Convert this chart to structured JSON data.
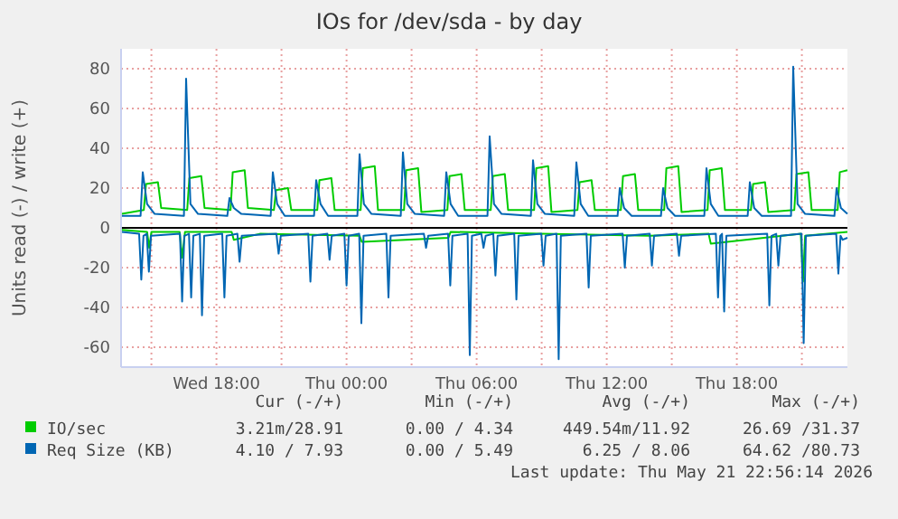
{
  "chart_data": {
    "type": "line",
    "title": "IOs for /dev/sda - by day",
    "ylabel": "Units read (-) / write (+)",
    "xlim": [
      "2026-05-20T13:36",
      "2026-05-21T23:06"
    ],
    "ylim": [
      -70,
      90
    ],
    "xticks": [
      {
        "value": "2026-05-20T15:00",
        "label": null
      },
      {
        "value": "2026-05-20T18:00",
        "label": "Wed 18:00"
      },
      {
        "value": "2026-05-20T21:00",
        "label": null
      },
      {
        "value": "2026-05-21T00:00",
        "label": "Thu 00:00"
      },
      {
        "value": "2026-05-21T03:00",
        "label": null
      },
      {
        "value": "2026-05-21T06:00",
        "label": "Thu 06:00"
      },
      {
        "value": "2026-05-21T09:00",
        "label": null
      },
      {
        "value": "2026-05-21T12:00",
        "label": "Thu 12:00"
      },
      {
        "value": "2026-05-21T15:00",
        "label": null
      },
      {
        "value": "2026-05-21T18:00",
        "label": "Thu 18:00"
      },
      {
        "value": "2026-05-21T21:00",
        "label": null
      }
    ],
    "yticks": [
      -60,
      -40,
      -20,
      0,
      20,
      40,
      60,
      80
    ],
    "grid": true,
    "legend": "bottom",
    "marker": "none",
    "line_style": "solid",
    "series": [
      {
        "name": "IO/sec",
        "color": "#00cc00",
        "x": [
          "2026-05-20T13:38",
          "2026-05-20T14:39",
          "2026-05-20T14:45",
          "2026-05-20T15:18",
          "2026-05-20T15:27",
          "2026-05-20T16:39",
          "2026-05-20T16:45",
          "2026-05-20T17:18",
          "2026-05-20T17:27",
          "2026-05-20T18:39",
          "2026-05-20T18:45",
          "2026-05-20T19:18",
          "2026-05-20T19:27",
          "2026-05-20T20:39",
          "2026-05-20T20:45",
          "2026-05-20T21:18",
          "2026-05-20T21:27",
          "2026-05-20T22:39",
          "2026-05-20T22:45",
          "2026-05-20T23:18",
          "2026-05-20T23:27",
          "2026-05-21T00:39",
          "2026-05-21T00:45",
          "2026-05-21T01:18",
          "2026-05-21T01:27",
          "2026-05-21T02:39",
          "2026-05-21T02:45",
          "2026-05-21T03:18",
          "2026-05-21T03:27",
          "2026-05-21T04:39",
          "2026-05-21T04:45",
          "2026-05-21T05:18",
          "2026-05-21T05:27",
          "2026-05-21T06:39",
          "2026-05-21T06:45",
          "2026-05-21T07:18",
          "2026-05-21T07:27",
          "2026-05-21T08:39",
          "2026-05-21T08:45",
          "2026-05-21T09:18",
          "2026-05-21T09:27",
          "2026-05-21T10:39",
          "2026-05-21T10:45",
          "2026-05-21T11:18",
          "2026-05-21T11:27",
          "2026-05-21T12:39",
          "2026-05-21T12:45",
          "2026-05-21T13:18",
          "2026-05-21T13:27",
          "2026-05-21T14:39",
          "2026-05-21T14:45",
          "2026-05-21T15:18",
          "2026-05-21T15:27",
          "2026-05-21T16:39",
          "2026-05-21T16:45",
          "2026-05-21T17:18",
          "2026-05-21T17:27",
          "2026-05-21T18:39",
          "2026-05-21T18:45",
          "2026-05-21T19:18",
          "2026-05-21T19:27",
          "2026-05-21T20:39",
          "2026-05-21T20:45",
          "2026-05-21T21:18",
          "2026-05-21T21:27",
          "2026-05-21T22:39",
          "2026-05-21T22:45",
          "2026-05-21T23:06"
        ],
        "values": [
          7,
          9,
          22,
          23,
          10,
          9,
          25,
          26,
          10,
          9,
          28,
          29,
          10,
          9,
          19,
          20,
          9,
          9,
          24,
          25,
          9,
          9,
          30,
          31,
          9,
          9,
          29,
          30,
          8,
          9,
          26,
          27,
          9,
          9,
          26,
          27,
          9,
          9,
          30,
          31,
          8,
          9,
          23,
          24,
          9,
          9,
          26,
          27,
          9,
          9,
          30,
          31,
          8,
          9,
          29,
          30,
          9,
          9,
          22,
          23,
          8,
          9,
          27,
          28,
          9,
          9,
          28,
          29
        ]
      },
      {
        "color": "#00cc00",
        "x": [
          "2026-05-20T13:38",
          "2026-05-20T14:48",
          "2026-05-20T14:54",
          "2026-05-20T15:00",
          "2026-05-20T16:18",
          "2026-05-20T16:25",
          "2026-05-20T16:33",
          "2026-05-20T18:42",
          "2026-05-20T18:48",
          "2026-05-20T20:00",
          "2026-05-21T00:36",
          "2026-05-21T00:42",
          "2026-05-21T04:42",
          "2026-05-21T04:48",
          "2026-05-21T09:00",
          "2026-05-21T14:00",
          "2026-05-21T16:42",
          "2026-05-21T16:48",
          "2026-05-21T20:57",
          "2026-05-21T21:03",
          "2026-05-21T21:09",
          "2026-05-21T23:06"
        ],
        "values": [
          -1,
          -2,
          -10,
          -2,
          -2,
          -15,
          -2,
          -2,
          -6,
          -3,
          -4,
          -7,
          -5,
          -2,
          -3,
          -4,
          -3,
          -8,
          -3,
          -27,
          -4,
          -2
        ]
      },
      {
        "name": "Req Size (KB)",
        "color": "#0066b3",
        "x": [
          "2026-05-20T13:38",
          "2026-05-20T14:30",
          "2026-05-20T14:36",
          "2026-05-20T14:48",
          "2026-05-20T15:09",
          "2026-05-20T16:30",
          "2026-05-20T16:36",
          "2026-05-20T16:48",
          "2026-05-20T17:09",
          "2026-05-20T18:30",
          "2026-05-20T18:36",
          "2026-05-20T18:48",
          "2026-05-20T19:09",
          "2026-05-20T20:30",
          "2026-05-20T20:36",
          "2026-05-20T20:48",
          "2026-05-20T21:09",
          "2026-05-20T22:30",
          "2026-05-20T22:36",
          "2026-05-20T22:48",
          "2026-05-20T23:09",
          "2026-05-21T00:30",
          "2026-05-21T00:36",
          "2026-05-21T00:48",
          "2026-05-21T01:09",
          "2026-05-21T02:30",
          "2026-05-21T02:36",
          "2026-05-21T02:48",
          "2026-05-21T03:09",
          "2026-05-21T04:30",
          "2026-05-21T04:36",
          "2026-05-21T04:48",
          "2026-05-21T05:09",
          "2026-05-21T06:30",
          "2026-05-21T06:36",
          "2026-05-21T06:48",
          "2026-05-21T07:09",
          "2026-05-21T08:30",
          "2026-05-21T08:36",
          "2026-05-21T08:48",
          "2026-05-21T09:09",
          "2026-05-21T10:30",
          "2026-05-21T10:36",
          "2026-05-21T10:48",
          "2026-05-21T11:09",
          "2026-05-21T12:30",
          "2026-05-21T12:36",
          "2026-05-21T12:48",
          "2026-05-21T13:09",
          "2026-05-21T14:30",
          "2026-05-21T14:36",
          "2026-05-21T14:48",
          "2026-05-21T15:09",
          "2026-05-21T16:30",
          "2026-05-21T16:36",
          "2026-05-21T16:48",
          "2026-05-21T17:09",
          "2026-05-21T18:30",
          "2026-05-21T18:36",
          "2026-05-21T18:48",
          "2026-05-21T19:09",
          "2026-05-21T20:30",
          "2026-05-21T20:36",
          "2026-05-21T20:48",
          "2026-05-21T21:09",
          "2026-05-21T22:30",
          "2026-05-21T22:36",
          "2026-05-21T22:48",
          "2026-05-21T23:06"
        ],
        "values": [
          6,
          6,
          28,
          12,
          7,
          6,
          75,
          12,
          7,
          6,
          15,
          10,
          7,
          6,
          28,
          12,
          6,
          6,
          24,
          12,
          6,
          6,
          37,
          12,
          7,
          6,
          38,
          12,
          7,
          6,
          28,
          12,
          6,
          6,
          46,
          12,
          7,
          6,
          34,
          12,
          7,
          6,
          33,
          12,
          6,
          6,
          20,
          10,
          6,
          6,
          20,
          10,
          6,
          6,
          30,
          12,
          6,
          6,
          23,
          10,
          6,
          6,
          81,
          12,
          7,
          6,
          20,
          10,
          7
        ]
      },
      {
        "color": "#0066b3",
        "x": [
          "2026-05-20T13:38",
          "2026-05-20T14:26",
          "2026-05-20T14:32",
          "2026-05-20T14:38",
          "2026-05-20T14:47",
          "2026-05-20T14:53",
          "2026-05-20T14:59",
          "2026-05-20T16:19",
          "2026-05-20T16:25",
          "2026-05-20T16:31",
          "2026-05-20T16:44",
          "2026-05-20T16:50",
          "2026-05-20T16:56",
          "2026-05-20T17:14",
          "2026-05-20T17:20",
          "2026-05-20T17:26",
          "2026-05-20T18:16",
          "2026-05-20T18:22",
          "2026-05-20T18:28",
          "2026-05-20T18:58",
          "2026-05-20T19:04",
          "2026-05-20T19:10",
          "2026-05-20T20:46",
          "2026-05-20T20:52",
          "2026-05-20T20:58",
          "2026-05-20T22:14",
          "2026-05-20T22:20",
          "2026-05-20T22:26",
          "2026-05-20T23:07",
          "2026-05-20T23:13",
          "2026-05-20T23:19",
          "2026-05-20T23:54",
          "2026-05-21T00:00",
          "2026-05-21T00:06",
          "2026-05-21T00:35",
          "2026-05-21T00:41",
          "2026-05-21T00:47",
          "2026-05-21T01:50",
          "2026-05-21T01:56",
          "2026-05-21T02:02",
          "2026-05-21T03:34",
          "2026-05-21T03:40",
          "2026-05-21T03:46",
          "2026-05-21T04:41",
          "2026-05-21T04:47",
          "2026-05-21T04:53",
          "2026-05-21T05:35",
          "2026-05-21T05:41",
          "2026-05-21T05:47",
          "2026-05-21T06:13",
          "2026-05-21T06:19",
          "2026-05-21T06:25",
          "2026-05-21T06:46",
          "2026-05-21T06:52",
          "2026-05-21T06:58",
          "2026-05-21T07:44",
          "2026-05-21T07:50",
          "2026-05-21T07:56",
          "2026-05-21T08:59",
          "2026-05-21T09:05",
          "2026-05-21T09:11",
          "2026-05-21T09:41",
          "2026-05-21T09:47",
          "2026-05-21T09:53",
          "2026-05-21T11:04",
          "2026-05-21T11:10",
          "2026-05-21T11:16",
          "2026-05-21T12:44",
          "2026-05-21T12:50",
          "2026-05-21T12:56",
          "2026-05-21T13:59",
          "2026-05-21T14:05",
          "2026-05-21T14:11",
          "2026-05-21T15:14",
          "2026-05-21T15:20",
          "2026-05-21T15:26",
          "2026-05-21T17:02",
          "2026-05-21T17:08",
          "2026-05-21T17:14",
          "2026-05-21T17:19",
          "2026-05-21T17:25",
          "2026-05-21T17:31",
          "2026-05-21T19:24",
          "2026-05-21T19:30",
          "2026-05-21T19:36",
          "2026-05-21T19:49",
          "2026-05-21T19:55",
          "2026-05-21T20:01",
          "2026-05-21T20:59",
          "2026-05-21T21:05",
          "2026-05-21T21:11",
          "2026-05-21T22:35",
          "2026-05-21T22:41",
          "2026-05-21T22:47",
          "2026-05-21T22:53",
          "2026-05-21T23:06"
        ],
        "values": [
          -2,
          -3,
          -26,
          -4,
          -3,
          -22,
          -4,
          -3,
          -37,
          -4,
          -3,
          -35,
          -4,
          -3,
          -44,
          -4,
          -3,
          -35,
          -4,
          -3,
          -17,
          -4,
          -3,
          -13,
          -4,
          -3,
          -27,
          -4,
          -3,
          -16,
          -4,
          -3,
          -29,
          -4,
          -3,
          -48,
          -4,
          -3,
          -35,
          -4,
          -3,
          -10,
          -4,
          -3,
          -29,
          -4,
          -3,
          -64,
          -4,
          -3,
          -10,
          -4,
          -3,
          -24,
          -4,
          -3,
          -36,
          -4,
          -3,
          -19,
          -4,
          -3,
          -66,
          -4,
          -3,
          -30,
          -4,
          -3,
          -20,
          -4,
          -3,
          -19,
          -4,
          -3,
          -14,
          -4,
          -3,
          -35,
          -4,
          -3,
          -42,
          -4,
          -3,
          -39,
          -4,
          -3,
          -19,
          -4,
          -3,
          -58,
          -4,
          -3,
          -23,
          -4,
          -6,
          -5
        ]
      }
    ],
    "annotations": [
      "Cur (-/+)",
      "Min (-/+)",
      "Avg (-/+)",
      "Max (-/+)",
      "3.21m/28.91",
      "0.00 / 4.34",
      "449.54m/11.92",
      "26.69 /31.37",
      "4.10 / 7.93",
      "0.00 / 5.49",
      "6.25 / 8.06",
      "64.62 /80.73",
      "Last update: Thu May 21 22:56:14 2026"
    ]
  }
}
